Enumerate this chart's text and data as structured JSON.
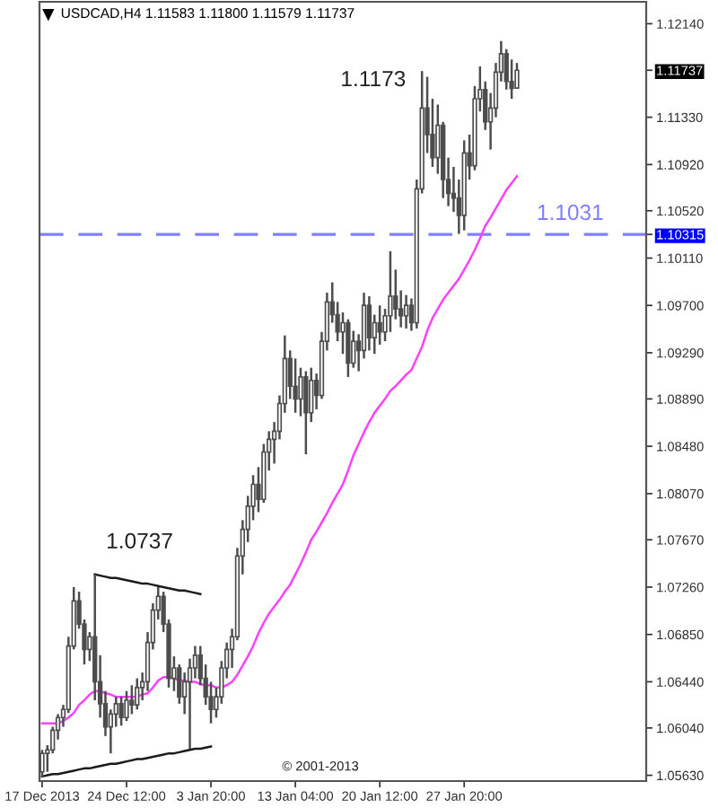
{
  "chart_data": {
    "type": "candlestick",
    "title": "USDCAD,H4 1.11583 1.11800 1.11579 1.11737",
    "categories": [
      "17 Dec 2013",
      null,
      null,
      null,
      null,
      null,
      null,
      null,
      null,
      null,
      null,
      null,
      null,
      null,
      null,
      null,
      "24 Dec 12:00",
      null,
      null,
      null,
      null,
      null,
      null,
      null,
      null,
      null,
      null,
      null,
      null,
      null,
      null,
      null,
      "3 Jan 20:00",
      null,
      null,
      null,
      null,
      null,
      null,
      null,
      null,
      null,
      null,
      null,
      null,
      null,
      null,
      null,
      "13 Jan 04:00",
      null,
      null,
      null,
      null,
      null,
      null,
      null,
      null,
      null,
      null,
      null,
      null,
      null,
      null,
      null,
      "20 Jan 12:00",
      null,
      null,
      null,
      null,
      null,
      null,
      null,
      null,
      null,
      null,
      null,
      null,
      null,
      null,
      null,
      "27 Jan 20:00",
      null,
      null,
      null,
      null,
      null,
      null,
      null,
      null,
      null,
      null
    ],
    "color": "#4d4d4d",
    "ohlc": [
      [
        1.0566,
        1.0585,
        1.0561,
        1.0582
      ],
      [
        1.0582,
        1.0589,
        1.0566,
        1.0585
      ],
      [
        1.0585,
        1.0605,
        1.0582,
        1.0602
      ],
      [
        1.0602,
        1.0616,
        1.0594,
        1.0613
      ],
      [
        1.0613,
        1.0624,
        1.0605,
        1.062
      ],
      [
        1.062,
        1.0683,
        1.0617,
        1.0675
      ],
      [
        1.0675,
        1.0726,
        1.0672,
        1.0714
      ],
      [
        1.0714,
        1.0722,
        1.069,
        1.0694
      ],
      [
        1.0694,
        1.0698,
        1.0659,
        1.0672
      ],
      [
        1.0672,
        1.0687,
        1.0662,
        1.0683
      ],
      [
        1.0683,
        1.0737,
        1.0628,
        1.0644
      ],
      [
        1.0644,
        1.0667,
        1.0613,
        1.0625
      ],
      [
        1.0625,
        1.0636,
        1.0597,
        1.0605
      ],
      [
        1.0605,
        1.062,
        1.0582,
        1.0616
      ],
      [
        1.0616,
        1.0631,
        1.0605,
        1.0625
      ],
      [
        1.0625,
        1.0631,
        1.0606,
        1.0613
      ],
      [
        1.0613,
        1.0636,
        1.061,
        1.0628
      ],
      [
        1.0628,
        1.0641,
        1.0616,
        1.0624
      ],
      [
        1.0624,
        1.0647,
        1.062,
        1.0639
      ],
      [
        1.0639,
        1.0652,
        1.0628,
        1.0644
      ],
      [
        1.0644,
        1.0687,
        1.0636,
        1.0678
      ],
      [
        1.0678,
        1.0712,
        1.0672,
        1.0706
      ],
      [
        1.0706,
        1.0726,
        1.0698,
        1.0718
      ],
      [
        1.0718,
        1.0722,
        1.0687,
        1.0694
      ],
      [
        1.0694,
        1.0698,
        1.0639,
        1.0647
      ],
      [
        1.0647,
        1.0666,
        1.0636,
        1.0656
      ],
      [
        1.0656,
        1.0659,
        1.0625,
        1.0631
      ],
      [
        1.0631,
        1.0652,
        1.0616,
        1.0644
      ],
      [
        1.0644,
        1.0664,
        1.0586,
        1.0656
      ],
      [
        1.0656,
        1.0675,
        1.0647,
        1.0667
      ],
      [
        1.0667,
        1.0675,
        1.0641,
        1.0647
      ],
      [
        1.0647,
        1.0659,
        1.0624,
        1.0631
      ],
      [
        1.0631,
        1.0644,
        1.0608,
        1.062
      ],
      [
        1.062,
        1.0639,
        1.0613,
        1.0631
      ],
      [
        1.0631,
        1.0662,
        1.0625,
        1.0656
      ],
      [
        1.0656,
        1.0678,
        1.0647,
        1.0672
      ],
      [
        1.0672,
        1.069,
        1.0656,
        1.0683
      ],
      [
        1.0683,
        1.076,
        1.068,
        1.0753
      ],
      [
        1.0753,
        1.0784,
        1.0737,
        1.0776
      ],
      [
        1.0776,
        1.0805,
        1.0765,
        1.0796
      ],
      [
        1.0796,
        1.0823,
        1.0784,
        1.0815
      ],
      [
        1.0815,
        1.083,
        1.0791,
        1.0802
      ],
      [
        1.0802,
        1.085,
        1.0799,
        1.0843
      ],
      [
        1.0843,
        1.0861,
        1.0827,
        1.0854
      ],
      [
        1.0854,
        1.0869,
        1.0833,
        1.0861
      ],
      [
        1.0861,
        1.0892,
        1.0854,
        1.0885
      ],
      [
        1.0885,
        1.0944,
        1.0877,
        1.0924
      ],
      [
        1.0924,
        1.0931,
        1.0889,
        1.09
      ],
      [
        1.09,
        1.0924,
        1.0877,
        1.0889
      ],
      [
        1.0889,
        1.0916,
        1.0874,
        1.0908
      ],
      [
        1.0908,
        1.0913,
        1.0841,
        1.0877
      ],
      [
        1.0877,
        1.0916,
        1.0869,
        1.0905
      ],
      [
        1.0905,
        1.0911,
        1.088,
        1.0892
      ],
      [
        1.0892,
        1.0947,
        1.0889,
        1.0939
      ],
      [
        1.0939,
        1.0981,
        1.0931,
        1.0973
      ],
      [
        1.0973,
        1.099,
        1.0955,
        1.0962
      ],
      [
        1.0962,
        1.0973,
        1.0939,
        1.0947
      ],
      [
        1.0947,
        1.0964,
        1.0928,
        1.0955
      ],
      [
        1.0955,
        1.0958,
        1.0908,
        1.092
      ],
      [
        1.092,
        1.0948,
        1.0916,
        1.0939
      ],
      [
        1.0939,
        1.0945,
        1.0913,
        1.0931
      ],
      [
        1.0931,
        1.0981,
        1.0924,
        1.097
      ],
      [
        1.097,
        1.0978,
        1.0931,
        1.0942
      ],
      [
        1.0942,
        1.0962,
        1.0928,
        1.0955
      ],
      [
        1.0955,
        1.097,
        1.0936,
        1.0947
      ],
      [
        1.0947,
        1.0967,
        1.0939,
        1.0961
      ],
      [
        1.0961,
        1.1017,
        1.0947,
        1.0978
      ],
      [
        1.0978,
        1.1001,
        1.0958,
        1.0967
      ],
      [
        1.0967,
        1.0983,
        1.0951,
        1.0961
      ],
      [
        1.0961,
        1.0979,
        1.095,
        1.097
      ],
      [
        1.097,
        1.0976,
        1.0948,
        1.0955
      ],
      [
        1.0955,
        1.1079,
        1.095,
        1.1071
      ],
      [
        1.1071,
        1.1173,
        1.1067,
        1.1141
      ],
      [
        1.1141,
        1.1168,
        1.1102,
        1.1118
      ],
      [
        1.1118,
        1.1149,
        1.109,
        1.1098
      ],
      [
        1.1098,
        1.1144,
        1.1084,
        1.1126
      ],
      [
        1.1126,
        1.1129,
        1.1063,
        1.1079
      ],
      [
        1.1079,
        1.1098,
        1.1056,
        1.1067
      ],
      [
        1.1067,
        1.109,
        1.1051,
        1.1063
      ],
      [
        1.1063,
        1.1079,
        1.1032,
        1.1048
      ],
      [
        1.1048,
        1.1113,
        1.1035,
        1.1102
      ],
      [
        1.1102,
        1.1118,
        1.1079,
        1.1091
      ],
      [
        1.1091,
        1.116,
        1.1087,
        1.1149
      ],
      [
        1.1149,
        1.1177,
        1.1138,
        1.1157
      ],
      [
        1.1157,
        1.1164,
        1.1122,
        1.1129
      ],
      [
        1.1129,
        1.1154,
        1.1105,
        1.1141
      ],
      [
        1.1141,
        1.118,
        1.1133,
        1.1172
      ],
      [
        1.1172,
        1.1199,
        1.1164,
        1.1188
      ],
      [
        1.1188,
        1.1192,
        1.1157,
        1.1164
      ],
      [
        1.1164,
        1.1183,
        1.1149,
        1.1158
      ],
      [
        1.11583,
        1.118,
        1.11579,
        1.11737
      ]
    ],
    "series": [
      {
        "type": "line",
        "color": "#ff40ff",
        "values": [
          1.0608,
          1.0608,
          1.0608,
          1.0608,
          1.061,
          1.0613,
          1.0617,
          1.0624,
          1.0628,
          1.0633,
          1.0636,
          1.0636,
          1.0634,
          1.0633,
          1.0631,
          1.0631,
          1.0631,
          1.0631,
          1.0631,
          1.0633,
          1.0634,
          1.0639,
          1.0645,
          1.0648,
          1.0648,
          1.0647,
          1.0645,
          1.0645,
          1.0644,
          1.0644,
          1.0642,
          1.0641,
          1.0641,
          1.0639,
          1.0639,
          1.0641,
          1.0644,
          1.065,
          1.0658,
          1.0666,
          1.0675,
          1.0686,
          1.0695,
          1.0703,
          1.0709,
          1.0715,
          1.0722,
          1.0728,
          1.0737,
          1.0746,
          1.0756,
          1.0767,
          1.0774,
          1.0782,
          1.079,
          1.0799,
          1.0807,
          1.0815,
          1.0827,
          1.084,
          1.085,
          1.086,
          1.0869,
          1.0877,
          1.0883,
          1.0889,
          1.0896,
          1.09,
          1.0905,
          1.091,
          1.0914,
          1.0924,
          1.0934,
          1.0948,
          1.0959,
          1.0967,
          1.0975,
          1.0981,
          1.0987,
          1.0993,
          1.1001,
          1.1009,
          1.1018,
          1.1028,
          1.1039,
          1.1046,
          1.1054,
          1.1062,
          1.107,
          1.1076,
          1.1082
        ]
      },
      {
        "type": "line",
        "color": "#1a1a1a",
        "values": [
          null,
          null,
          null,
          null,
          null,
          null,
          null,
          null,
          null,
          null,
          1.0737,
          1.0736,
          1.0735,
          1.0734,
          1.0734,
          1.0733,
          1.0732,
          1.0731,
          1.073,
          1.0729,
          1.0729,
          1.0728,
          1.0727,
          1.0726,
          1.0725,
          1.0724,
          1.0723,
          1.0723,
          1.0722,
          1.0721,
          1.072,
          null,
          null,
          null,
          null,
          null,
          null,
          null,
          null,
          null,
          null,
          null,
          null,
          null,
          null,
          null,
          null,
          null,
          null,
          null,
          null,
          null,
          null,
          null,
          null,
          null,
          null,
          null,
          null,
          null,
          null,
          null,
          null,
          null,
          null,
          null,
          null,
          null,
          null,
          null,
          null,
          null,
          null,
          null,
          null,
          null,
          null,
          null,
          null,
          null,
          null,
          null,
          null,
          null,
          null,
          null,
          null,
          null,
          null,
          null,
          null
        ]
      },
      {
        "type": "line",
        "color": "#1a1a1a",
        "values": [
          1.0562,
          1.0563,
          1.0564,
          1.0564,
          1.0565,
          1.0566,
          1.0567,
          1.0568,
          1.0569,
          1.0569,
          1.057,
          1.0571,
          1.0572,
          1.0573,
          1.0573,
          1.0574,
          1.0575,
          1.0576,
          1.0577,
          1.0577,
          1.0578,
          1.0579,
          1.058,
          1.0581,
          1.0582,
          1.0582,
          1.0583,
          1.0584,
          1.0585,
          1.0586,
          1.0586,
          1.0587,
          1.0588,
          null,
          null,
          null,
          null,
          null,
          null,
          null,
          null,
          null,
          null,
          null,
          null,
          null,
          null,
          null,
          null,
          null,
          null,
          null,
          null,
          null,
          null,
          null,
          null,
          null,
          null,
          null,
          null,
          null,
          null,
          null,
          null,
          null,
          null,
          null,
          null,
          null,
          null,
          null,
          null,
          null,
          null,
          null,
          null,
          null,
          null,
          null,
          null,
          null,
          null,
          null,
          null,
          null,
          null,
          null,
          null,
          null,
          null
        ]
      }
    ],
    "ylim": [
      1.0558,
      1.1233
    ],
    "yticks": [
      {
        "value": 1.1214,
        "label": "1.12140"
      },
      {
        "value": 1.11737,
        "label": "1.11737"
      },
      {
        "value": 1.1133,
        "label": "1.11330"
      },
      {
        "value": 1.1092,
        "label": "1.10920"
      },
      {
        "value": 1.1052,
        "label": "1.10520"
      },
      {
        "value": 1.10315,
        "label": "1.10315"
      },
      {
        "value": 1.1011,
        "label": "1.10110"
      },
      {
        "value": 1.097,
        "label": "1.09700"
      },
      {
        "value": 1.0929,
        "label": "1.09290"
      },
      {
        "value": 1.0889,
        "label": "1.08890"
      },
      {
        "value": 1.0848,
        "label": "1.08480"
      },
      {
        "value": 1.0807,
        "label": "1.08070"
      },
      {
        "value": 1.0767,
        "label": "1.07670"
      },
      {
        "value": 1.0726,
        "label": "1.07260"
      },
      {
        "value": 1.0685,
        "label": "1.06850"
      },
      {
        "value": 1.0644,
        "label": "1.06440"
      },
      {
        "value": 1.0604,
        "label": "1.06040"
      },
      {
        "value": 1.0563,
        "label": "1.05630"
      }
    ],
    "ref_lines": [
      {
        "axis": "y",
        "value": 1.10315,
        "label": "1.1031",
        "color": "#8080ff",
        "line_style": "dashed"
      }
    ],
    "annotations": [
      "1.1173",
      "1.0737",
      "© 2001-2013"
    ]
  }
}
